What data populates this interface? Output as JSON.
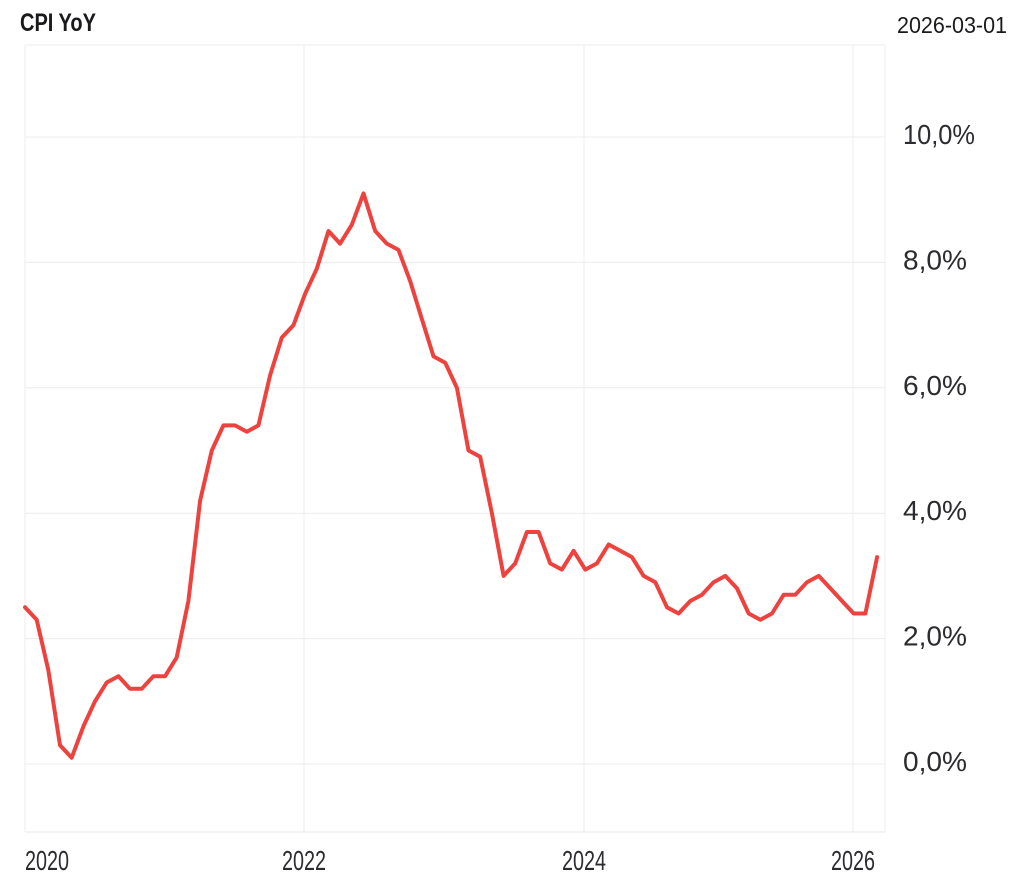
{
  "header": {
    "title": "CPI YoY",
    "as_of_date": "2026-03-01"
  },
  "colors": {
    "line": "#ee423e",
    "grid": "#ececec",
    "axis_frame": "#e7e7e7",
    "title_text": "#1a1a1c",
    "tick_text": "#2c2c30",
    "background": "#ffffff"
  },
  "chart_data": {
    "type": "line",
    "title": "CPI YoY",
    "as_of_date": "2026-03-01",
    "series_name": "CPI YoY",
    "unit": "% year-over-year",
    "legend_position": "none",
    "grid": true,
    "ylim": [
      -1.1,
      11.5
    ],
    "y_tick_values": [
      10,
      8,
      6,
      4,
      2,
      0
    ],
    "y_tick_labels": [
      "10,0%",
      "8,0%",
      "6,0%",
      "4,0%",
      "2,0%",
      "0,0%"
    ],
    "x_tick_labels": [
      "2020",
      "2022",
      "2024",
      "2026"
    ],
    "x_tick_month_index": [
      0,
      24,
      48,
      72
    ],
    "x": [
      "2020-01",
      "2020-02",
      "2020-03",
      "2020-04",
      "2020-05",
      "2020-06",
      "2020-07",
      "2020-08",
      "2020-09",
      "2020-10",
      "2020-11",
      "2020-12",
      "2021-01",
      "2021-02",
      "2021-03",
      "2021-04",
      "2021-05",
      "2021-06",
      "2021-07",
      "2021-08",
      "2021-09",
      "2021-10",
      "2021-11",
      "2021-12",
      "2022-01",
      "2022-02",
      "2022-03",
      "2022-04",
      "2022-05",
      "2022-06",
      "2022-07",
      "2022-08",
      "2022-09",
      "2022-10",
      "2022-11",
      "2022-12",
      "2023-01",
      "2023-02",
      "2023-03",
      "2023-04",
      "2023-05",
      "2023-06",
      "2023-07",
      "2023-08",
      "2023-09",
      "2023-10",
      "2023-11",
      "2023-12",
      "2024-01",
      "2024-02",
      "2024-03",
      "2024-04",
      "2024-05",
      "2024-06",
      "2024-07",
      "2024-08",
      "2024-09",
      "2024-10",
      "2024-11",
      "2024-12",
      "2025-01",
      "2025-02",
      "2025-03",
      "2025-04",
      "2025-05",
      "2025-06",
      "2025-07",
      "2025-08",
      "2025-09",
      "2025-10",
      "2025-11",
      "2025-12",
      "2026-01",
      "2026-02"
    ],
    "values": [
      2.5,
      2.3,
      1.5,
      0.3,
      0.1,
      0.6,
      1.0,
      1.3,
      1.4,
      1.2,
      1.2,
      1.4,
      1.4,
      1.7,
      2.6,
      4.2,
      5.0,
      5.4,
      5.4,
      5.3,
      5.4,
      6.2,
      6.8,
      7.0,
      7.5,
      7.9,
      8.5,
      8.3,
      8.6,
      9.1,
      8.5,
      8.3,
      8.2,
      7.7,
      7.1,
      6.5,
      6.4,
      6.0,
      5.0,
      4.9,
      4.0,
      3.0,
      3.2,
      3.7,
      3.7,
      3.2,
      3.1,
      3.4,
      3.1,
      3.2,
      3.5,
      3.4,
      3.3,
      3.0,
      2.9,
      2.5,
      2.4,
      2.6,
      2.7,
      2.9,
      3.0,
      2.8,
      2.4,
      2.3,
      2.4,
      2.7,
      2.7,
      2.9,
      3.0,
      2.8,
      2.6,
      2.4,
      2.4,
      3.3
    ]
  }
}
